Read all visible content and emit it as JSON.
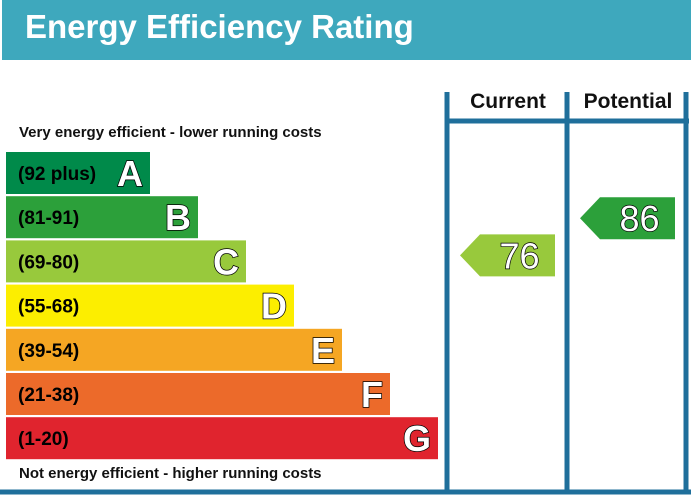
{
  "title": "Energy Efficiency Rating",
  "columns": {
    "current": "Current",
    "potential": "Potential"
  },
  "captions": {
    "top": "Very energy efficient - lower running costs",
    "bottom": "Not energy efficient - higher running costs"
  },
  "chart_data": {
    "type": "bar",
    "bands": [
      {
        "range": "(92 plus)",
        "letter": "A",
        "color": "#008a4a"
      },
      {
        "range": "(81-91)",
        "letter": "B",
        "color": "#2ca03a"
      },
      {
        "range": "(69-80)",
        "letter": "C",
        "color": "#98c93c"
      },
      {
        "range": "(55-68)",
        "letter": "D",
        "color": "#fcee00"
      },
      {
        "range": "(39-54)",
        "letter": "E",
        "color": "#f5a623"
      },
      {
        "range": "(21-38)",
        "letter": "F",
        "color": "#ec6a2a"
      },
      {
        "range": "(1-20)",
        "letter": "G",
        "color": "#e0242e"
      }
    ],
    "current": {
      "value": 76,
      "band": "C",
      "color": "#98c93c"
    },
    "potential": {
      "value": 86,
      "band": "B",
      "color": "#2ca03a"
    }
  },
  "colors": {
    "header": "#3ea8bd",
    "frame": "#1f6f9b"
  }
}
